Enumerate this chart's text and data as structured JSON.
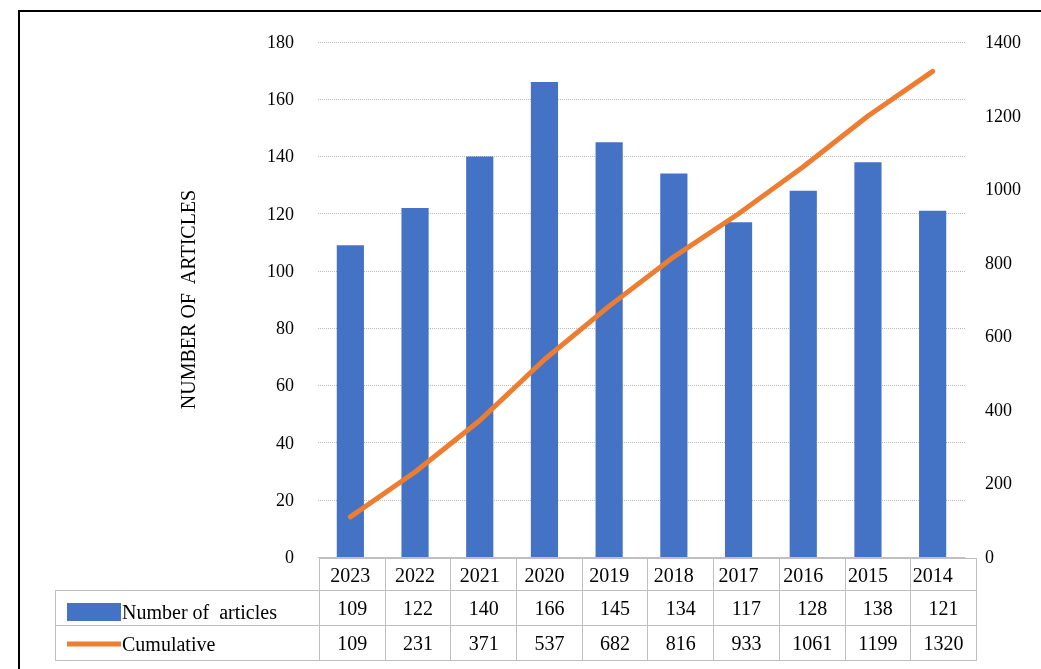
{
  "chart_data": {
    "type": "bar",
    "ylabel": "NUMBER OF  ARTICLES",
    "categories": [
      "2023",
      "2022",
      "2021",
      "2020",
      "2019",
      "2018",
      "2017",
      "2016",
      "2015",
      "2014"
    ],
    "series": [
      {
        "name": "Number of  articles",
        "color": "#4472c4",
        "values": [
          109,
          122,
          140,
          166,
          145,
          134,
          117,
          128,
          138,
          121
        ]
      },
      {
        "name": "Cumulative",
        "type": "line",
        "axis": "y2",
        "color": "#ed7d31",
        "values": [
          109,
          231,
          371,
          537,
          682,
          816,
          933,
          1061,
          1199,
          1320
        ]
      }
    ],
    "ylim": [
      0,
      180
    ],
    "yticks": [
      0,
      20,
      40,
      60,
      80,
      100,
      120,
      140,
      160,
      180
    ],
    "y2lim": [
      0,
      1400
    ],
    "y2ticks": [
      0,
      200,
      400,
      600,
      800,
      1000,
      1200,
      1400
    ],
    "grid": "y",
    "legend": "bottom",
    "data_labels": true,
    "marker": "none",
    "line_style": "solid"
  }
}
